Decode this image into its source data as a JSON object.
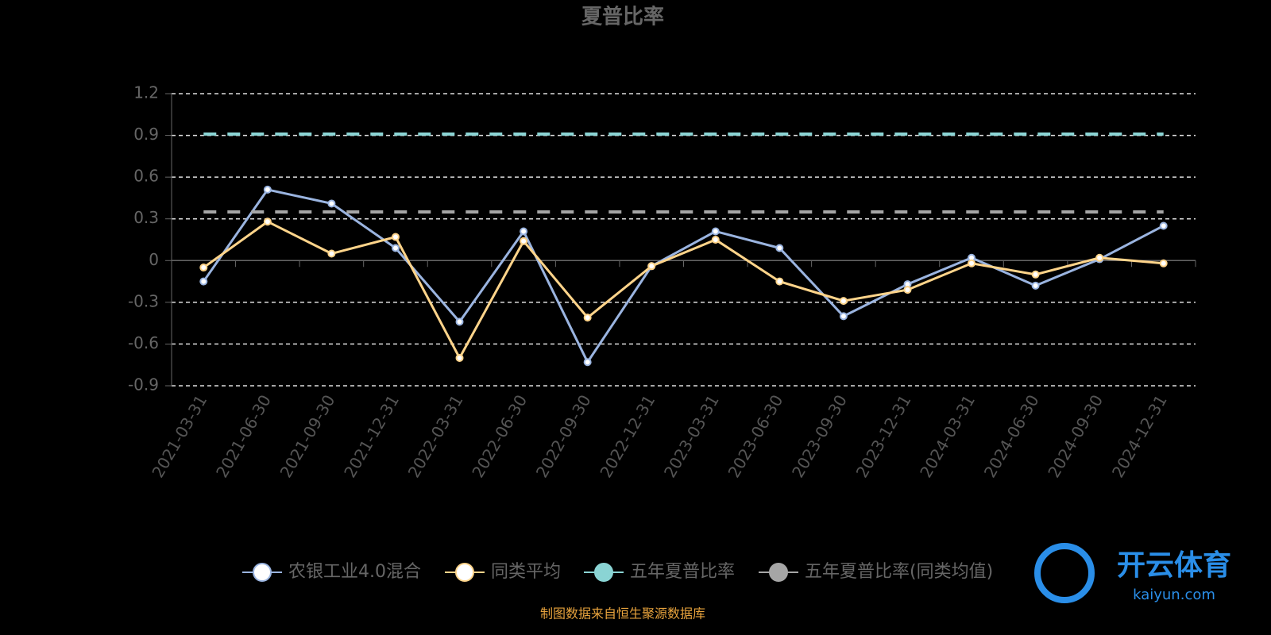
{
  "chart_data": {
    "type": "line",
    "title": "夏普比率",
    "categories": [
      "2021-03-31",
      "2021-06-30",
      "2021-09-30",
      "2021-12-31",
      "2022-03-31",
      "2022-06-30",
      "2022-09-30",
      "2022-12-31",
      "2023-03-31",
      "2023-06-30",
      "2023-09-30",
      "2023-12-31",
      "2024-03-31",
      "2024-06-30",
      "2024-09-30",
      "2024-12-31"
    ],
    "series": [
      {
        "name": "农银工业4.0混合",
        "color": "#9ab4e0",
        "values": [
          -0.15,
          0.51,
          0.41,
          0.09,
          -0.44,
          0.21,
          -0.73,
          -0.04,
          0.21,
          0.09,
          -0.4,
          -0.17,
          0.02,
          -0.18,
          0.01,
          0.25
        ]
      },
      {
        "name": "同类平均",
        "color": "#ffd48a",
        "values": [
          -0.05,
          0.28,
          0.05,
          0.17,
          -0.7,
          0.14,
          -0.41,
          -0.04,
          0.15,
          -0.15,
          -0.29,
          -0.21,
          -0.02,
          -0.1,
          0.02,
          -0.02
        ]
      },
      {
        "name": "五年夏普比率",
        "color": "#8ad4d4",
        "values": [
          0.91,
          0.91,
          0.91,
          0.91,
          0.91,
          0.91,
          0.91,
          0.91,
          0.91,
          0.91,
          0.91,
          0.91,
          0.91,
          0.91,
          0.91,
          0.91
        ]
      },
      {
        "name": "五年夏普比率(同类均值)",
        "color": "#a6a6a6",
        "values": [
          0.35,
          0.35,
          0.35,
          0.35,
          0.35,
          0.35,
          0.35,
          0.35,
          0.35,
          0.35,
          0.35,
          0.35,
          0.35,
          0.35,
          0.35,
          0.35
        ]
      }
    ],
    "ylim": [
      -0.9,
      1.2
    ],
    "yticks": [
      -0.9,
      -0.6,
      -0.3,
      0,
      0.3,
      0.6,
      0.9,
      1.2
    ],
    "grid": true,
    "source": "制图数据来自恒生聚源数据库",
    "watermark": {
      "title": "开云体育",
      "subtitle": "kaiyun.com"
    }
  }
}
